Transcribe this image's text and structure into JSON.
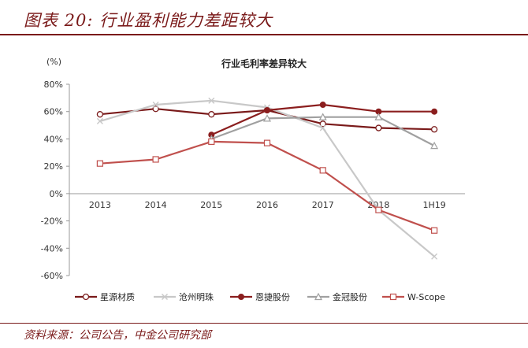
{
  "header": {
    "figure_title": "图表 20:  行业盈利能力差距较大"
  },
  "footer": {
    "source": "资料来源：公司公告，中金公司研究部"
  },
  "chart_data": {
    "type": "line",
    "title": "行业毛利率差异较大",
    "unit_label": "(%)",
    "categories": [
      "2013",
      "2014",
      "2015",
      "2016",
      "2017",
      "2018",
      "1H19"
    ],
    "ylim": [
      -60,
      80
    ],
    "yticks": [
      80,
      60,
      40,
      20,
      0,
      -20,
      -40,
      -60
    ],
    "ytick_labels": [
      "80%",
      "60%",
      "40%",
      "20%",
      "0%",
      "-20%",
      "-40%",
      "-60%"
    ],
    "grid": false,
    "legend_position": "bottom",
    "series": [
      {
        "name": "星源材质",
        "values": [
          58,
          62,
          58,
          61,
          51,
          48,
          47
        ],
        "color": "#7a1a1a",
        "marker": "circle-open"
      },
      {
        "name": "沧州明珠",
        "values": [
          53,
          65,
          68,
          63,
          48,
          -12,
          -46
        ],
        "color": "#c8c8c8",
        "marker": "x"
      },
      {
        "name": "恩捷股份",
        "values": [
          null,
          null,
          43,
          61,
          65,
          60,
          60
        ],
        "color": "#8b1e1e",
        "marker": "circle-filled"
      },
      {
        "name": "金冠股份",
        "values": [
          null,
          null,
          40,
          55,
          56,
          56,
          35
        ],
        "color": "#a0a0a0",
        "marker": "triangle-open"
      },
      {
        "name": "W-Scope",
        "values": [
          22,
          25,
          38,
          37,
          17,
          -12,
          -27
        ],
        "color": "#c0504d",
        "marker": "square-open"
      }
    ]
  }
}
